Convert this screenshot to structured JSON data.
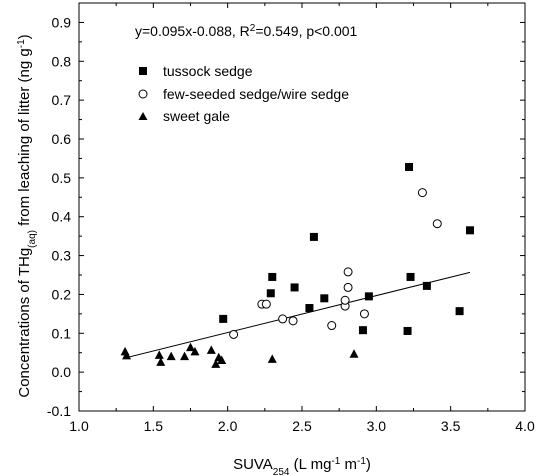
{
  "chart_data": {
    "type": "scatter",
    "title": "",
    "annotation": {
      "eq": "y=0.095x-0.088, R",
      "sup": "2",
      "rest": "=0.549, p<0.001"
    },
    "xlabel": {
      "main": "SUVA",
      "sub": "254",
      "unit_open": "  (L mg",
      "sup1": "-1",
      "unit_mid": " m",
      "sup2": "-1",
      "unit_close": ")"
    },
    "ylabel": {
      "main": "Concentrations of THg",
      "sub": "(aq)",
      "unit": " from leaching of litter (ng g",
      "sup": "-1",
      "close": ")"
    },
    "xlim": [
      1.0,
      4.0
    ],
    "ylim": [
      -0.1,
      0.95
    ],
    "xticks": [
      "1.0",
      "1.5",
      "2.0",
      "2.5",
      "3.0",
      "3.5",
      "4.0"
    ],
    "yticks": [
      "-0.1",
      "0.0",
      "0.1",
      "0.2",
      "0.3",
      "0.4",
      "0.5",
      "0.6",
      "0.7",
      "0.8",
      "0.9"
    ],
    "legend_position": "top-left",
    "series": [
      {
        "name": "tussock sedge",
        "marker": "square-filled",
        "points": [
          [
            1.97,
            0.137
          ],
          [
            2.29,
            0.203
          ],
          [
            2.3,
            0.245
          ],
          [
            2.45,
            0.218
          ],
          [
            2.55,
            0.165
          ],
          [
            2.58,
            0.348
          ],
          [
            2.65,
            0.19
          ],
          [
            2.91,
            0.108
          ],
          [
            2.95,
            0.195
          ],
          [
            3.21,
            0.106
          ],
          [
            3.22,
            0.528
          ],
          [
            3.23,
            0.245
          ],
          [
            3.34,
            0.222
          ],
          [
            3.56,
            0.157
          ],
          [
            3.63,
            0.365
          ]
        ]
      },
      {
        "name": "few-seeded sedge/wire sedge",
        "marker": "circle-open",
        "points": [
          [
            2.04,
            0.097
          ],
          [
            2.23,
            0.175
          ],
          [
            2.26,
            0.175
          ],
          [
            2.37,
            0.137
          ],
          [
            2.44,
            0.132
          ],
          [
            2.7,
            0.12
          ],
          [
            2.79,
            0.17
          ],
          [
            2.79,
            0.185
          ],
          [
            2.81,
            0.218
          ],
          [
            2.81,
            0.258
          ],
          [
            2.92,
            0.15
          ],
          [
            3.31,
            0.462
          ],
          [
            3.41,
            0.382
          ]
        ]
      },
      {
        "name": "sweet gale",
        "marker": "triangle-filled",
        "points": [
          [
            1.31,
            0.052
          ],
          [
            1.32,
            0.042
          ],
          [
            1.54,
            0.043
          ],
          [
            1.55,
            0.025
          ],
          [
            1.62,
            0.04
          ],
          [
            1.71,
            0.04
          ],
          [
            1.75,
            0.063
          ],
          [
            1.78,
            0.052
          ],
          [
            1.89,
            0.056
          ],
          [
            1.92,
            0.02
          ],
          [
            1.94,
            0.037
          ],
          [
            1.96,
            0.03
          ],
          [
            2.3,
            0.033
          ],
          [
            2.85,
            0.046
          ]
        ]
      }
    ],
    "regression": {
      "slope": 0.095,
      "intercept": -0.088,
      "x_range": [
        1.31,
        3.63
      ]
    }
  }
}
